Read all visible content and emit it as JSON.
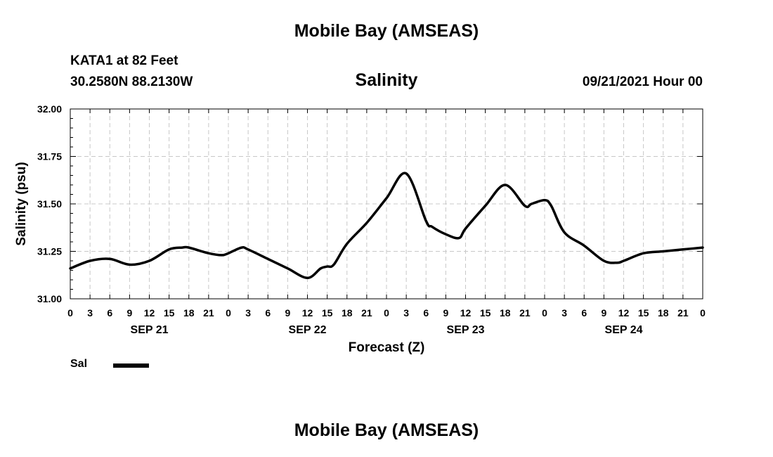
{
  "header": {
    "title": "Mobile Bay (AMSEAS)",
    "station": "KATA1 at 82 Feet",
    "coordinates": "30.2580N  88.2130W",
    "variable": "Salinity",
    "timestamp": "09/21/2021 Hour 00"
  },
  "legend": {
    "label": "Sal"
  },
  "footer": {
    "title": "Mobile Bay (AMSEAS)"
  },
  "chart_data": {
    "type": "line",
    "title": "Salinity",
    "xlabel": "Forecast (Z)",
    "ylabel": "Salinity (psu)",
    "ylim": [
      31.0,
      32.0
    ],
    "yticks": [
      "31.00",
      "31.25",
      "31.50",
      "31.75",
      "32.00"
    ],
    "xlim_hours": [
      0,
      96
    ],
    "xtick_labels": [
      "0",
      "3",
      "6",
      "9",
      "12",
      "15",
      "18",
      "21",
      "0",
      "3",
      "6",
      "9",
      "12",
      "15",
      "18",
      "21",
      "0",
      "3",
      "6",
      "9",
      "12",
      "15",
      "18",
      "21",
      "0",
      "3",
      "6",
      "9",
      "12",
      "15",
      "18",
      "21",
      "0"
    ],
    "day_labels": [
      "SEP 21",
      "SEP 22",
      "SEP 23",
      "SEP 24"
    ],
    "grid": true,
    "line_color": "#000000",
    "series": [
      {
        "name": "Sal",
        "x": [
          0,
          3,
          6,
          9,
          12,
          15,
          17,
          18,
          21,
          23,
          24,
          26,
          27,
          30,
          33,
          36,
          38,
          39,
          40,
          42,
          45,
          48,
          51,
          54,
          54.9,
          57,
          59,
          60,
          63,
          66,
          69,
          70,
          72,
          73,
          75,
          78,
          81,
          83,
          84,
          87,
          90,
          93,
          96
        ],
        "y": [
          31.16,
          31.2,
          31.21,
          31.18,
          31.2,
          31.26,
          31.27,
          31.27,
          31.24,
          31.23,
          31.24,
          31.27,
          31.26,
          31.21,
          31.16,
          31.11,
          31.16,
          31.17,
          31.18,
          31.29,
          31.4,
          31.53,
          31.66,
          31.41,
          31.38,
          31.34,
          31.32,
          31.37,
          31.49,
          31.6,
          31.49,
          31.5,
          31.52,
          31.49,
          31.35,
          31.28,
          31.2,
          31.19,
          31.2,
          31.24,
          31.25,
          31.26,
          31.27
        ]
      }
    ]
  }
}
